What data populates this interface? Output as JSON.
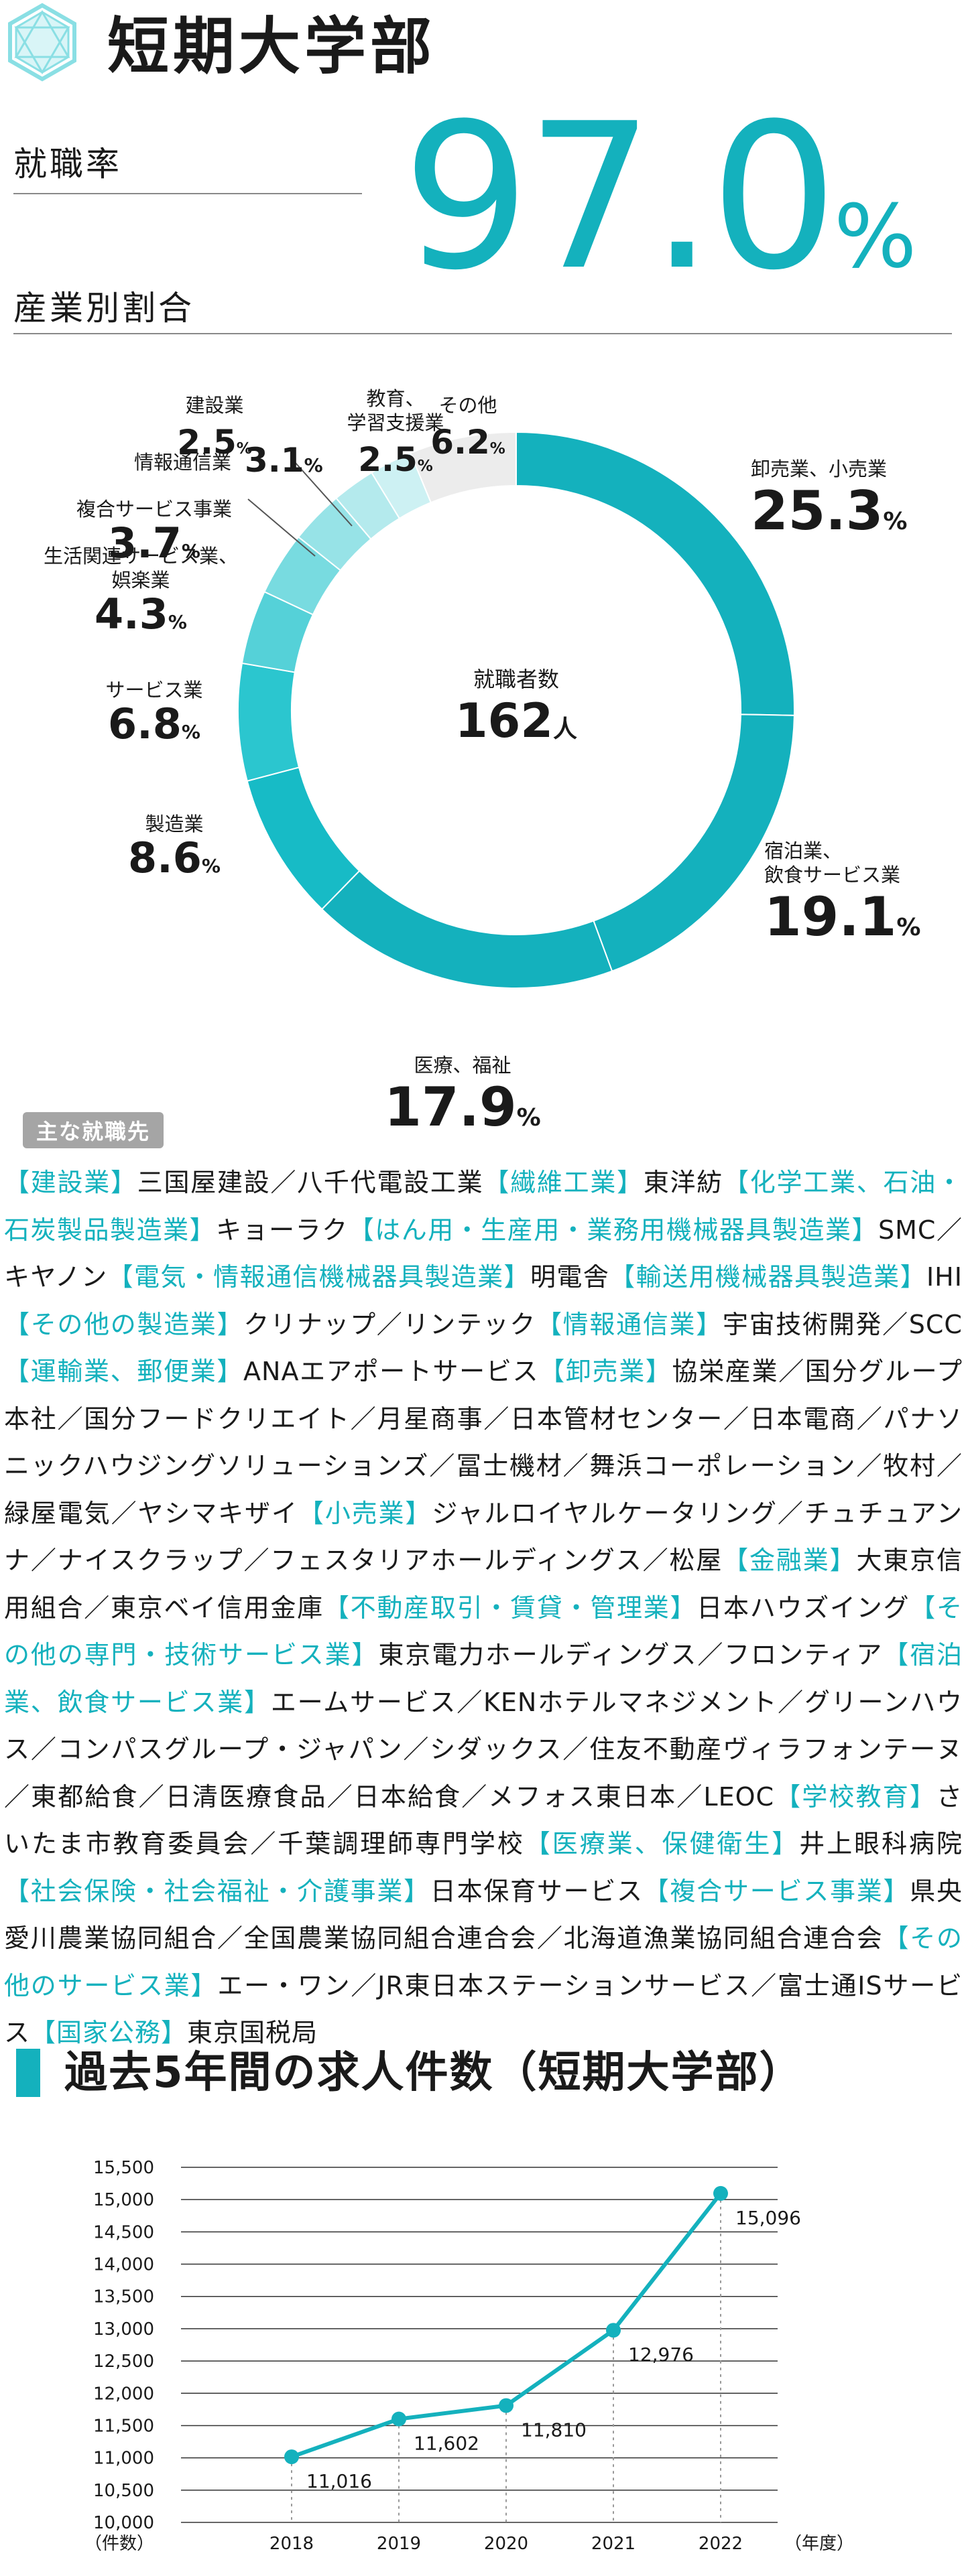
{
  "header": {
    "title": "短期大学部",
    "employment_rate_label": "就職率",
    "employment_rate_value": "97.0",
    "employment_rate_unit": "%",
    "industry_ratio_label": "産業別割合"
  },
  "colors": {
    "accent": "#14b1bd",
    "tag_bg": "#a5a5a5"
  },
  "donut": {
    "center_label": "就職者数",
    "center_value": "162",
    "center_unit": "人",
    "segments": [
      {
        "label": "卸売業、小売業",
        "value": 25.3,
        "value_text": "25.3",
        "color": "#14b1bd"
      },
      {
        "label": "宿泊業、飲食サービス業",
        "value": 19.1,
        "value_text": "19.1",
        "color": "#14b1bd"
      },
      {
        "label": "医療、福祉",
        "value": 17.9,
        "value_text": "17.9",
        "color": "#14b1bd"
      },
      {
        "label": "製造業",
        "value": 8.6,
        "value_text": "8.6",
        "color": "#17bbc6"
      },
      {
        "label": "サービス業",
        "value": 6.8,
        "value_text": "6.8",
        "color": "#2bc6cf"
      },
      {
        "label": "生活関連サービス業、娯楽業",
        "value": 4.3,
        "value_text": "4.3",
        "color": "#55d1d8"
      },
      {
        "label": "複合サービス事業",
        "value": 3.7,
        "value_text": "3.7",
        "color": "#78dbe0"
      },
      {
        "label": "情報通信業",
        "value": 3.1,
        "value_text": "3.1",
        "color": "#97e3e7"
      },
      {
        "label": "建設業",
        "value": 2.5,
        "value_text": "2.5",
        "color": "#b4eaed"
      },
      {
        "label": "教育、学習支援業",
        "value": 2.5,
        "value_text": "2.5",
        "color": "#cdf1f3"
      },
      {
        "label": "その他",
        "value": 6.2,
        "value_text": "6.2",
        "color": "#ececec"
      }
    ],
    "pct_unit": "%"
  },
  "employers": {
    "tag": "主な就職先",
    "segments": [
      {
        "t": "【建設業】",
        "c": 1
      },
      {
        "t": "三国屋建設／八千代電設工業",
        "c": 0
      },
      {
        "t": "【繊維工業】",
        "c": 1
      },
      {
        "t": "東洋紡",
        "c": 0
      },
      {
        "t": "【化学工業、石油・石炭製品製造業】",
        "c": 1
      },
      {
        "t": "キョーラク",
        "c": 0
      },
      {
        "t": "【はん用・生産用・業務用機械器具製造業】",
        "c": 1
      },
      {
        "t": "SMC／キヤノン",
        "c": 0
      },
      {
        "t": "【電気・情報通信機械器具製造業】",
        "c": 1
      },
      {
        "t": "明電舎",
        "c": 0
      },
      {
        "t": "【輸送用機械器具製造業】",
        "c": 1
      },
      {
        "t": "IHI",
        "c": 0
      },
      {
        "t": "【その他の製造業】",
        "c": 1
      },
      {
        "t": "クリナップ／リンテック",
        "c": 0
      },
      {
        "t": "【情報通信業】",
        "c": 1
      },
      {
        "t": "宇宙技術開発／SCC",
        "c": 0
      },
      {
        "t": "【運輸業、郵便業】",
        "c": 1
      },
      {
        "t": "ANAエアポートサービス",
        "c": 0
      },
      {
        "t": "【卸売業】",
        "c": 1
      },
      {
        "t": "協栄産業／国分グループ本社／国分フードクリエイト／月星商事／日本管材センター／日本電商／パナソニックハウジングソリューションズ／冨士機材／舞浜コーポレーション／牧村／緑屋電気／ヤシマキザイ",
        "c": 0
      },
      {
        "t": "【小売業】",
        "c": 1
      },
      {
        "t": "ジャルロイヤルケータリング／チュチュアンナ／ナイスクラップ／フェスタリアホールディングス／松屋",
        "c": 0
      },
      {
        "t": "【金融業】",
        "c": 1
      },
      {
        "t": "大東京信用組合／東京ベイ信用金庫",
        "c": 0
      },
      {
        "t": "【不動産取引・賃貸・管理業】",
        "c": 1
      },
      {
        "t": "日本ハウズイング",
        "c": 0
      },
      {
        "t": "【その他の専門・技術サービス業】",
        "c": 1
      },
      {
        "t": "東京電力ホールディングス／フロンティア",
        "c": 0
      },
      {
        "t": "【宿泊業、飲食サービス業】",
        "c": 1
      },
      {
        "t": "エームサービス／KENホテルマネジメント／グリーンハウス／コンパスグループ・ジャパン／シダックス／住友不動産ヴィラフォンテーヌ／東都給食／日清医療食品／日本給食／メフォス東日本／LEOC",
        "c": 0
      },
      {
        "t": "【学校教育】",
        "c": 1
      },
      {
        "t": "さいたま市教育委員会／千葉調理師専門学校",
        "c": 0
      },
      {
        "t": "【医療業、保健衛生】",
        "c": 1
      },
      {
        "t": "井上眼科病院",
        "c": 0
      },
      {
        "t": "【社会保険・社会福祉・介護事業】",
        "c": 1
      },
      {
        "t": "日本保育サービス",
        "c": 0
      },
      {
        "t": "【複合サービス事業】",
        "c": 1
      },
      {
        "t": "県央愛川農業協同組合／全国農業協同組合連合会／北海道漁業協同組合連合会",
        "c": 0
      },
      {
        "t": "【その他のサービス業】",
        "c": 1
      },
      {
        "t": "エー・ワン／JR東日本ステーションサービス／富士通ISサービス",
        "c": 0
      },
      {
        "t": "【国家公務】",
        "c": 1
      },
      {
        "t": "東京国税局",
        "c": 0
      }
    ]
  },
  "chart_section_title": "過去5年間の求人件数（短期大学部）",
  "chart_data": {
    "type": "line",
    "title": "過去5年間の求人件数（短期大学部）",
    "x": [
      "2018",
      "2019",
      "2020",
      "2021",
      "2022"
    ],
    "series": [
      {
        "values": [
          11016,
          11602,
          11810,
          12976,
          15096
        ]
      }
    ],
    "value_labels": [
      "11,016",
      "11,602",
      "11,810",
      "12,976",
      "15,096"
    ],
    "ylim": [
      10000,
      15500
    ],
    "yticks": [
      "10,000",
      "10,500",
      "11,000",
      "11,500",
      "12,000",
      "12,500",
      "13,000",
      "13,500",
      "14,000",
      "14,500",
      "15,000",
      "15,500"
    ],
    "ylabel": "（件数）",
    "xlabel": "（年度）",
    "grid": true
  }
}
